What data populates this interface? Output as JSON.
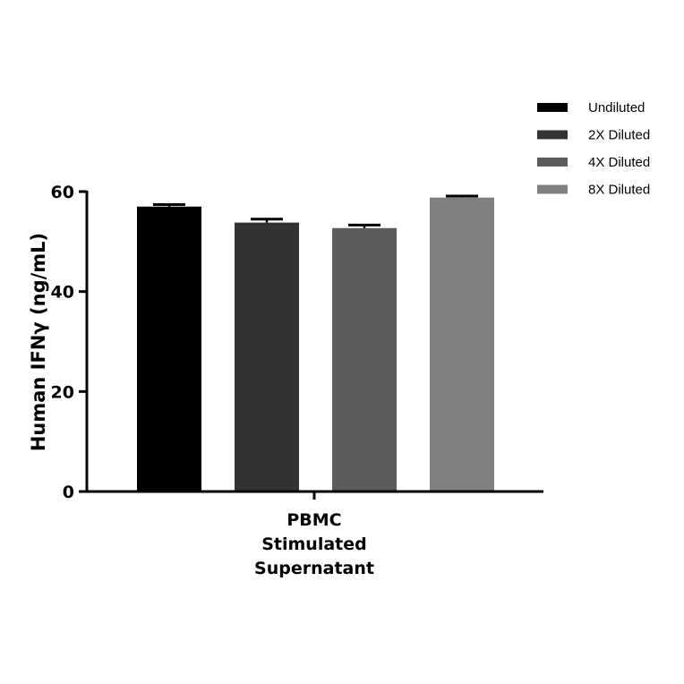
{
  "chart_data": {
    "type": "bar",
    "title": "",
    "xlabel": "",
    "ylabel": "Human IFNγ (ng/mL)",
    "ylim": [
      0,
      60
    ],
    "yticks": [
      0,
      20,
      40,
      60
    ],
    "categories": [
      "PBMC Stimulated Supernatant"
    ],
    "category_label_lines": [
      "PBMC",
      "Stimulated",
      "Supernatant"
    ],
    "legend_position": "top-right",
    "grid": false,
    "series": [
      {
        "name": "Undiluted",
        "values": [
          57.0
        ],
        "error": [
          0.4
        ],
        "color": "#000000"
      },
      {
        "name": "2X Diluted",
        "values": [
          53.8
        ],
        "error": [
          0.7
        ],
        "color": "#333333"
      },
      {
        "name": "4X Diluted",
        "values": [
          52.7
        ],
        "error": [
          0.6
        ],
        "color": "#5c5c5c"
      },
      {
        "name": "8X Diluted",
        "values": [
          58.8
        ],
        "error": [
          0.3
        ],
        "color": "#808080"
      }
    ]
  }
}
